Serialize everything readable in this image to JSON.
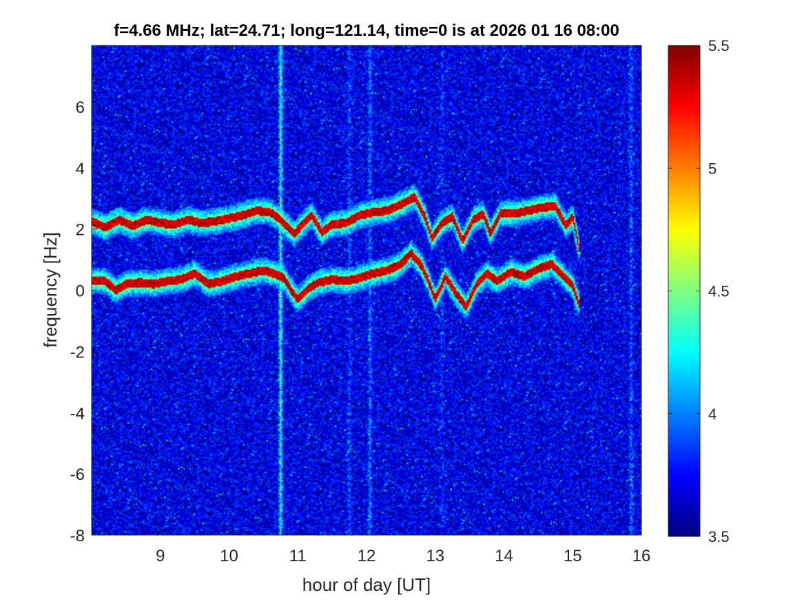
{
  "chart_data": {
    "type": "heatmap",
    "title": "f=4.66 MHz;  lat=24.71; long=121.14, time=0 is at 2026 01 16 08:00",
    "xlabel": "hour of day [UT]",
    "ylabel": "frequency [Hz]",
    "xlim": [
      8,
      16
    ],
    "ylim": [
      -8,
      8
    ],
    "xticks": [
      9,
      10,
      11,
      12,
      13,
      14,
      15,
      16
    ],
    "yticks": [
      -8,
      -6,
      -4,
      -2,
      0,
      2,
      4,
      6
    ],
    "colorbar": {
      "colormap": "jet",
      "clim": [
        3.5,
        5.5
      ],
      "ticks": [
        3.5,
        4,
        4.5,
        5,
        5.5
      ]
    },
    "background_level": 3.7,
    "vertical_stripes": [
      {
        "x": 10.75,
        "level": 4.4
      },
      {
        "x": 12.05,
        "level": 4.0
      },
      {
        "x": 11.75,
        "level": 3.9
      },
      {
        "x": 13.1,
        "level": 3.85
      },
      {
        "x": 15.85,
        "level": 3.95
      }
    ],
    "series": [
      {
        "points": [
          [
            8.0,
            0.3
          ],
          [
            8.2,
            0.3
          ],
          [
            8.35,
            0.0
          ],
          [
            8.5,
            0.2
          ],
          [
            8.7,
            0.25
          ],
          [
            8.9,
            0.2
          ],
          [
            9.1,
            0.3
          ],
          [
            9.3,
            0.35
          ],
          [
            9.5,
            0.55
          ],
          [
            9.7,
            0.2
          ],
          [
            9.9,
            0.3
          ],
          [
            10.1,
            0.45
          ],
          [
            10.3,
            0.55
          ],
          [
            10.5,
            0.65
          ],
          [
            10.65,
            0.55
          ],
          [
            10.8,
            0.4
          ],
          [
            10.9,
            0.0
          ],
          [
            11.0,
            -0.3
          ],
          [
            11.15,
            0.05
          ],
          [
            11.3,
            0.25
          ],
          [
            11.5,
            0.35
          ],
          [
            11.7,
            0.3
          ],
          [
            11.9,
            0.4
          ],
          [
            12.1,
            0.55
          ],
          [
            12.3,
            0.65
          ],
          [
            12.5,
            0.85
          ],
          [
            12.65,
            1.2
          ],
          [
            12.8,
            0.8
          ],
          [
            12.9,
            0.3
          ],
          [
            13.0,
            -0.3
          ],
          [
            13.15,
            0.45
          ],
          [
            13.3,
            -0.1
          ],
          [
            13.45,
            -0.55
          ],
          [
            13.6,
            0.2
          ],
          [
            13.75,
            0.55
          ],
          [
            13.9,
            0.3
          ],
          [
            14.1,
            0.6
          ],
          [
            14.3,
            0.45
          ],
          [
            14.5,
            0.7
          ],
          [
            14.7,
            0.85
          ],
          [
            14.85,
            0.5
          ],
          [
            15.0,
            0.15
          ],
          [
            15.1,
            -0.5
          ]
        ]
      },
      {
        "points": [
          [
            8.0,
            2.25
          ],
          [
            8.2,
            2.05
          ],
          [
            8.4,
            2.3
          ],
          [
            8.6,
            2.1
          ],
          [
            8.8,
            2.3
          ],
          [
            9.0,
            2.2
          ],
          [
            9.2,
            2.15
          ],
          [
            9.4,
            2.3
          ],
          [
            9.6,
            2.2
          ],
          [
            9.8,
            2.25
          ],
          [
            10.0,
            2.35
          ],
          [
            10.2,
            2.45
          ],
          [
            10.4,
            2.6
          ],
          [
            10.6,
            2.55
          ],
          [
            10.75,
            2.3
          ],
          [
            10.95,
            1.85
          ],
          [
            11.05,
            2.1
          ],
          [
            11.2,
            2.45
          ],
          [
            11.35,
            1.9
          ],
          [
            11.5,
            2.15
          ],
          [
            11.7,
            2.2
          ],
          [
            11.9,
            2.45
          ],
          [
            12.1,
            2.55
          ],
          [
            12.3,
            2.6
          ],
          [
            12.5,
            2.8
          ],
          [
            12.7,
            3.05
          ],
          [
            12.85,
            2.4
          ],
          [
            12.95,
            1.7
          ],
          [
            13.1,
            2.2
          ],
          [
            13.25,
            2.4
          ],
          [
            13.4,
            1.6
          ],
          [
            13.55,
            2.3
          ],
          [
            13.7,
            2.5
          ],
          [
            13.8,
            1.85
          ],
          [
            13.95,
            2.5
          ],
          [
            14.15,
            2.5
          ],
          [
            14.35,
            2.6
          ],
          [
            14.55,
            2.7
          ],
          [
            14.75,
            2.75
          ],
          [
            14.9,
            2.1
          ],
          [
            15.0,
            2.4
          ],
          [
            15.1,
            1.3
          ]
        ]
      }
    ]
  }
}
